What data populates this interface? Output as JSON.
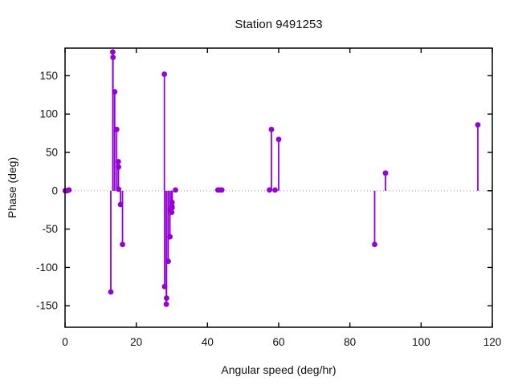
{
  "window": {
    "background": "#ffffff"
  },
  "chart_data": {
    "type": "scatter",
    "style": "impulses-with-points",
    "title": "Station 9491253",
    "xlabel": "Angular speed (deg/hr)",
    "ylabel": "Phase (deg)",
    "xlim": [
      0,
      120
    ],
    "ylim": [
      -178,
      186
    ],
    "xticks": [
      0,
      20,
      40,
      60,
      80,
      100,
      120
    ],
    "yticks": [
      -150,
      -100,
      -50,
      0,
      50,
      100,
      150
    ],
    "grid": false,
    "legend": "none",
    "zero_axis": {
      "shown": true,
      "style": "dotted",
      "color": "#999999"
    },
    "marker": {
      "shape": "filled-circle",
      "color": "#9400d3",
      "radius": 3.4
    },
    "stem_width": 1.8,
    "frame_color": "#000000",
    "points": [
      [
        0.041,
        0
      ],
      [
        0.082,
        0
      ],
      [
        0.544,
        0
      ],
      [
        1.016,
        1
      ],
      [
        1.098,
        1
      ],
      [
        12.854,
        -132
      ],
      [
        13.399,
        181
      ],
      [
        13.472,
        174
      ],
      [
        13.943,
        129
      ],
      [
        14.497,
        80
      ],
      [
        14.959,
        38
      ],
      [
        15.0,
        31
      ],
      [
        15.041,
        2
      ],
      [
        15.585,
        -18
      ],
      [
        16.139,
        -70
      ],
      [
        27.895,
        152
      ],
      [
        27.968,
        -125
      ],
      [
        28.44,
        -148
      ],
      [
        28.513,
        -140
      ],
      [
        28.984,
        -92
      ],
      [
        29.456,
        -60
      ],
      [
        29.528,
        -25
      ],
      [
        29.959,
        -28
      ],
      [
        30.0,
        -20
      ],
      [
        30.041,
        -15
      ],
      [
        30.082,
        -22
      ],
      [
        31.016,
        1
      ],
      [
        42.927,
        1
      ],
      [
        43.476,
        1
      ],
      [
        44.025,
        1
      ],
      [
        57.424,
        1
      ],
      [
        57.968,
        80
      ],
      [
        58.984,
        1
      ],
      [
        60.0,
        67
      ],
      [
        86.952,
        -70
      ],
      [
        90.0,
        23
      ],
      [
        115.936,
        86
      ]
    ]
  }
}
